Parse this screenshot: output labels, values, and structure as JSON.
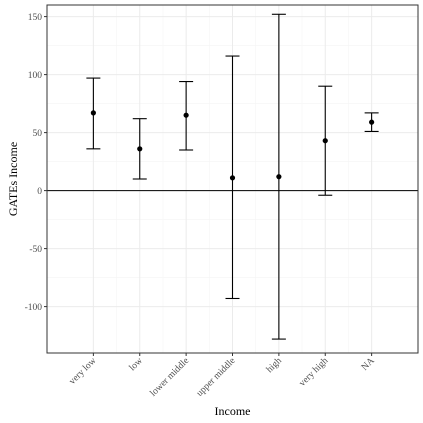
{
  "chart_data": {
    "type": "errorbar",
    "title": "",
    "xlabel": "Income",
    "ylabel": "GATEs Income",
    "categories": [
      "very low",
      "low",
      "lower middle",
      "upper middle",
      "high",
      "very high",
      "NA"
    ],
    "estimates": [
      67,
      36,
      65,
      11,
      12,
      43,
      59
    ],
    "lower": [
      36,
      10,
      35,
      -93,
      -128,
      -4,
      51
    ],
    "upper": [
      97,
      62,
      94,
      116,
      152,
      90,
      67
    ],
    "ylim": [
      -140,
      160
    ],
    "yticks": [
      -100,
      -50,
      0,
      50,
      100,
      150
    ],
    "reference_line": 0,
    "grid": true,
    "legend": "none",
    "colors": {
      "marks": "#000000",
      "grid_major": "#ebebeb",
      "grid_minor": "#f5f5f5",
      "panel_border": "#333333",
      "tick_text": "#4d4d4d"
    }
  }
}
